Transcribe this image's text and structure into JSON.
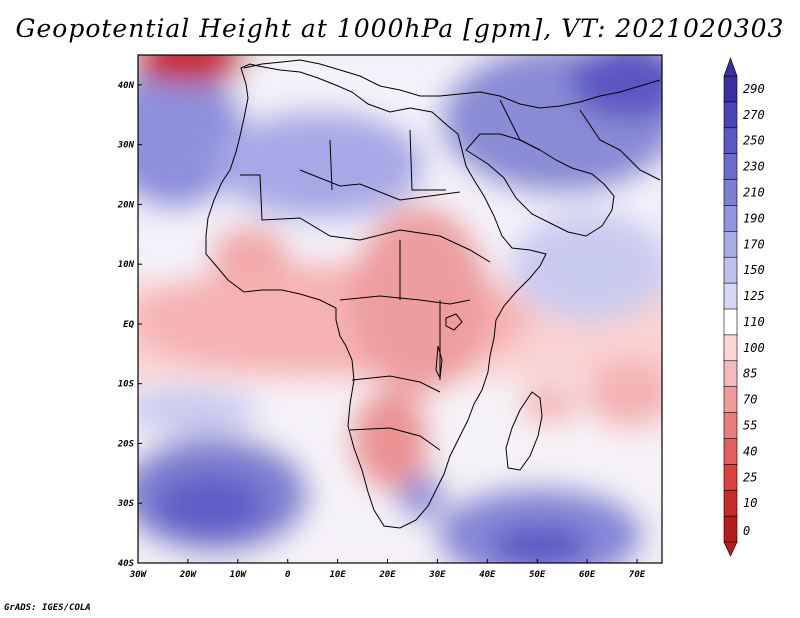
{
  "title": "Geopotential Height at 1000hPa [gpm], VT: 2021020303",
  "credit": "GrADS: IGES/COLA",
  "map": {
    "lat_labels": [
      "40N",
      "30N",
      "20N",
      "10N",
      "EQ",
      "10S",
      "20S",
      "30S",
      "40S"
    ],
    "lon_labels": [
      "30W",
      "20W",
      "10W",
      "0",
      "10E",
      "20E",
      "30E",
      "40E",
      "50E",
      "60E",
      "70E"
    ],
    "lat_range": [
      -40,
      45
    ],
    "lon_range": [
      -30,
      75
    ]
  },
  "colorbar": {
    "labels": [
      "290",
      "270",
      "250",
      "230",
      "210",
      "190",
      "170",
      "150",
      "125",
      "110",
      "100",
      "85",
      "70",
      "55",
      "40",
      "25",
      "10",
      "0"
    ],
    "colors": [
      "#3a2fa0",
      "#4a44b6",
      "#5a58c4",
      "#6a6ccc",
      "#7c80d4",
      "#9195dc",
      "#a8abe4",
      "#bec0ec",
      "#d6d7f4",
      "#ffffff",
      "#fbd7d7",
      "#f5b9b9",
      "#ef9b9b",
      "#e97c7c",
      "#e35e5e",
      "#dc4040",
      "#c92b2b",
      "#b71c1c"
    ]
  },
  "colors": {
    "map_background": "#fbdcdc",
    "frame": "#000000"
  }
}
